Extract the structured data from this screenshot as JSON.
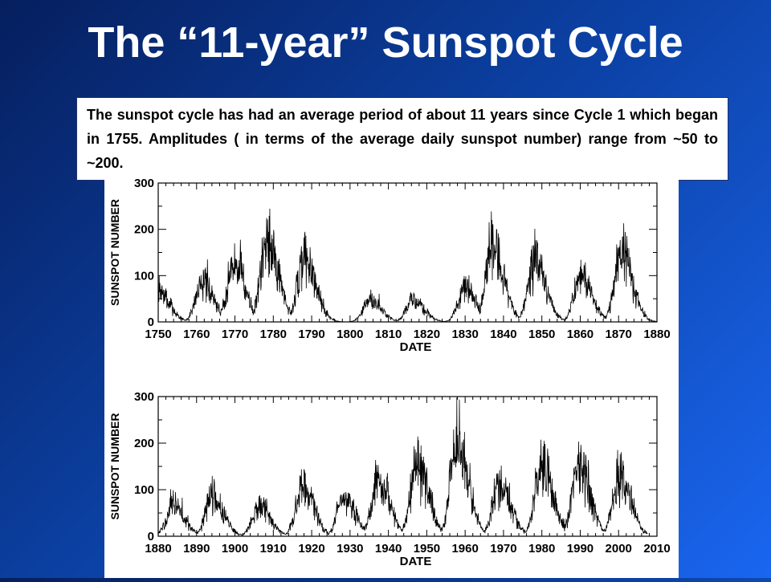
{
  "title": "The “11-year” Sunspot Cycle",
  "description": "The sunspot cycle has had an average period of about 11 years since Cycle 1 which began in 1755. Amplitudes ( in terms of the average daily sunspot number) range from ~50 to ~200.",
  "chart_data": [
    {
      "type": "line",
      "title": "",
      "xlabel": "DATE",
      "ylabel": "SUNSPOT NUMBER",
      "xlim": [
        1750,
        1880
      ],
      "ylim": [
        0,
        300
      ],
      "x_ticks": [
        1750,
        1760,
        1770,
        1780,
        1790,
        1800,
        1810,
        1820,
        1830,
        1840,
        1850,
        1860,
        1870,
        1880
      ],
      "y_ticks": [
        0,
        100,
        200,
        300
      ],
      "series": [
        {
          "peaks": [
            [
              1750.0,
              70
            ],
            [
              1761.5,
              90
            ],
            [
              1769.7,
              130
            ],
            [
              1778.4,
              190
            ],
            [
              1788.1,
              150
            ],
            [
              1805.2,
              50
            ],
            [
              1816.4,
              50
            ],
            [
              1829.9,
              75
            ],
            [
              1837.2,
              170
            ],
            [
              1848.1,
              135
            ],
            [
              1860.1,
              100
            ],
            [
              1870.6,
              155
            ]
          ]
        }
      ]
    },
    {
      "type": "line",
      "title": "",
      "xlabel": "DATE",
      "ylabel": "SUNSPOT NUMBER",
      "xlim": [
        1880,
        2010
      ],
      "ylim": [
        0,
        300
      ],
      "x_ticks": [
        1880,
        1890,
        1900,
        1910,
        1920,
        1930,
        1940,
        1950,
        1960,
        1970,
        1980,
        1990,
        2000,
        2010
      ],
      "y_ticks": [
        0,
        100,
        200,
        300
      ],
      "series": [
        {
          "peaks": [
            [
              1883.9,
              70
            ],
            [
              1894.1,
              90
            ],
            [
              1906.2,
              70
            ],
            [
              1917.6,
              115
            ],
            [
              1928.4,
              85
            ],
            [
              1937.4,
              130
            ],
            [
              1947.5,
              165
            ],
            [
              1957.9,
              215
            ],
            [
              1968.9,
              120
            ],
            [
              1979.9,
              165
            ],
            [
              1989.6,
              170
            ],
            [
              2000.3,
              140
            ]
          ]
        }
      ]
    }
  ]
}
